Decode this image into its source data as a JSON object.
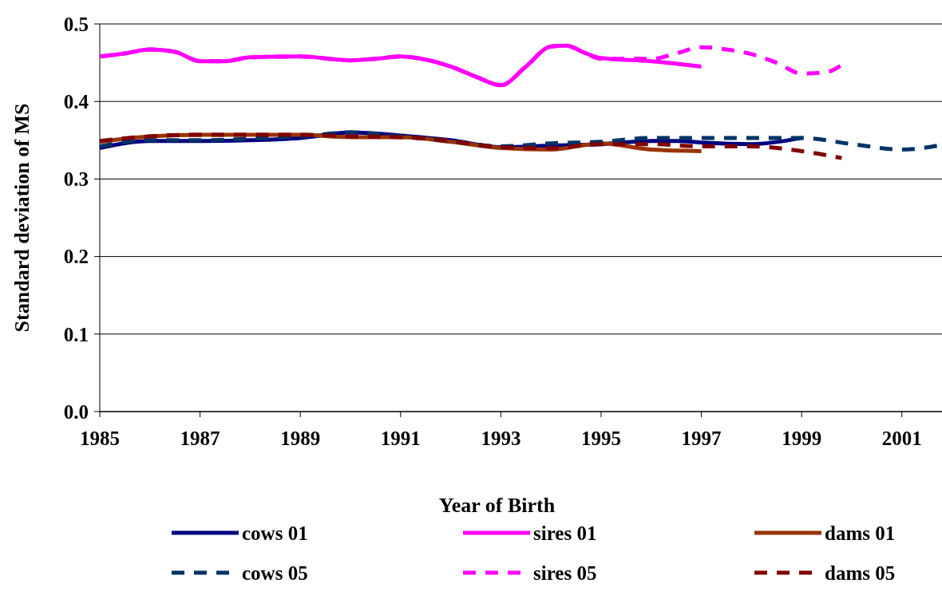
{
  "chart_data": {
    "type": "line",
    "xlabel": "Year of Birth",
    "ylabel": "Standard deviation of MS",
    "xlim": [
      1985,
      2001.8
    ],
    "xticks": [
      1985,
      1987,
      1989,
      1991,
      1993,
      1995,
      1997,
      1999,
      2001
    ],
    "ylim": [
      0,
      0.5
    ],
    "yticks": [
      {
        "value": 0,
        "label": "0.0"
      },
      {
        "value": 0.1,
        "label": "0.1"
      },
      {
        "value": 0.2,
        "label": "0.2"
      },
      {
        "value": 0.3,
        "label": "0.3"
      },
      {
        "value": 0.4,
        "label": "0.4"
      },
      {
        "value": 0.5,
        "label": "0.5"
      }
    ],
    "grid": "y",
    "legend": "bottom",
    "series": [
      {
        "name": "cows 01",
        "color": "#000080",
        "line_style": "solid",
        "x": [
          1985,
          1986,
          1987,
          1988,
          1989,
          1990,
          1991,
          1992,
          1993,
          1994,
          1995,
          1996,
          1996.5,
          1997,
          1998,
          1999
        ],
        "values": [
          0.34,
          0.349,
          0.349,
          0.35,
          0.353,
          0.36,
          0.356,
          0.35,
          0.341,
          0.343,
          0.345,
          0.349,
          0.349,
          0.347,
          0.345,
          0.353
        ]
      },
      {
        "name": "sires 01",
        "color": "#ff00ff",
        "line_style": "solid",
        "x": [
          1985,
          1985.5,
          1986,
          1986.5,
          1987,
          1987.5,
          1988,
          1989,
          1990,
          1990.5,
          1991,
          1991.5,
          1992,
          1992.5,
          1993,
          1993.5,
          1994,
          1994.3,
          1994.7,
          1995,
          1996,
          1997
        ],
        "values": [
          0.458,
          0.462,
          0.467,
          0.464,
          0.452,
          0.452,
          0.457,
          0.458,
          0.453,
          0.455,
          0.458,
          0.454,
          0.445,
          0.432,
          0.421,
          0.445,
          0.471,
          0.472,
          0.462,
          0.456,
          0.452,
          0.445
        ]
      },
      {
        "name": "dams 01",
        "color": "#993300",
        "line_style": "solid",
        "x": [
          1985,
          1986,
          1987,
          1988,
          1989,
          1990,
          1991,
          1992,
          1993,
          1994,
          1995,
          1996,
          1997
        ],
        "values": [
          0.348,
          0.355,
          0.357,
          0.357,
          0.357,
          0.354,
          0.354,
          0.348,
          0.34,
          0.338,
          0.346,
          0.338,
          0.336
        ]
      },
      {
        "name": "cows 05",
        "color": "#003366",
        "line_style": "dashed",
        "x": [
          1985,
          1986,
          1987,
          1988,
          1989,
          1990,
          1991,
          1992,
          1993,
          1994,
          1995,
          1996,
          1997,
          1998,
          1999,
          2000,
          2001,
          2001.8
        ],
        "values": [
          0.342,
          0.35,
          0.35,
          0.352,
          0.355,
          0.36,
          0.355,
          0.349,
          0.342,
          0.346,
          0.348,
          0.353,
          0.353,
          0.353,
          0.353,
          0.345,
          0.338,
          0.344
        ]
      },
      {
        "name": "sires 05",
        "color": "#ff00ff",
        "line_style": "dashed",
        "x": [
          1985,
          1985.5,
          1986,
          1986.5,
          1987,
          1987.5,
          1988,
          1989,
          1990,
          1990.5,
          1991,
          1991.5,
          1992,
          1992.5,
          1993,
          1993.5,
          1994,
          1994.3,
          1994.7,
          1995,
          1996,
          1996.5,
          1997,
          1997.5,
          1998,
          1998.5,
          1999,
          1999.5,
          1999.8
        ],
        "values": [
          0.458,
          0.462,
          0.467,
          0.464,
          0.452,
          0.452,
          0.457,
          0.458,
          0.453,
          0.455,
          0.458,
          0.454,
          0.445,
          0.432,
          0.421,
          0.445,
          0.471,
          0.472,
          0.462,
          0.455,
          0.455,
          0.462,
          0.47,
          0.467,
          0.461,
          0.45,
          0.436,
          0.438,
          0.447
        ]
      },
      {
        "name": "dams 05",
        "color": "#800000",
        "line_style": "dashed",
        "x": [
          1985,
          1986,
          1987,
          1988,
          1989,
          1990,
          1991,
          1992,
          1993,
          1994,
          1995,
          1996,
          1997,
          1998,
          1999,
          1999.8
        ],
        "values": [
          0.349,
          0.355,
          0.357,
          0.357,
          0.357,
          0.355,
          0.354,
          0.349,
          0.341,
          0.34,
          0.345,
          0.345,
          0.342,
          0.342,
          0.336,
          0.327
        ]
      }
    ]
  }
}
